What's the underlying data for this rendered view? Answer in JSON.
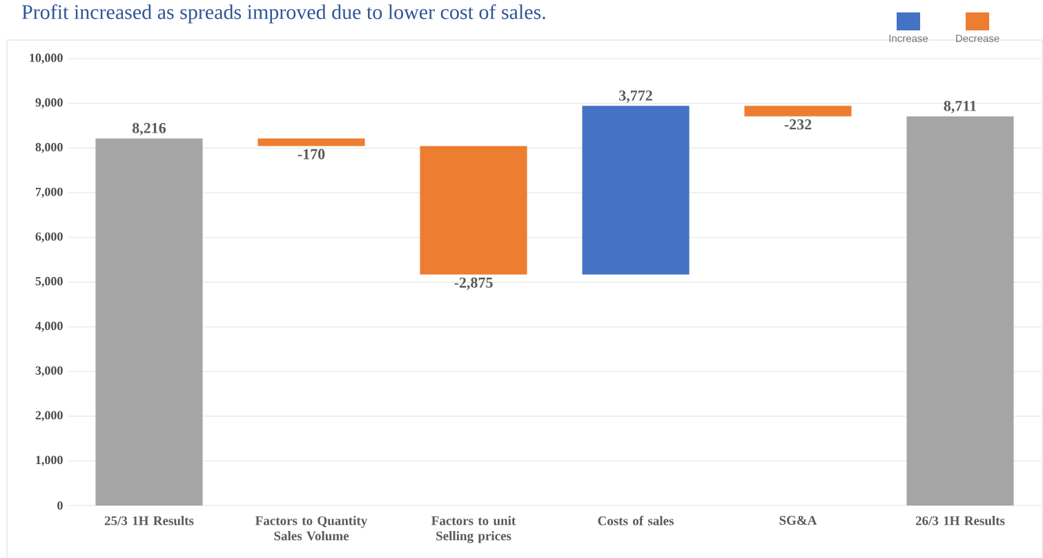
{
  "chart_data": {
    "type": "bar",
    "title": "Profit increased as spreads improved due to lower cost of sales.",
    "categories": [
      "25/3 1H Results",
      "Factors to Quantity Sales Volume",
      "Factors to unit Selling prices",
      "Costs of sales",
      "SG&A",
      "26/3 1H Results"
    ],
    "series": [
      {
        "color": "#a5a5a5",
        "base": [
          0,
          null,
          null,
          null,
          null,
          0
        ],
        "values": [
          8216,
          null,
          null,
          null,
          null,
          8711
        ],
        "value_labels": [
          "8,216",
          null,
          null,
          null,
          null,
          "8,711"
        ]
      },
      {
        "name": "Increase",
        "color": "#4472c4",
        "base": [
          null,
          null,
          null,
          5171,
          null,
          null
        ],
        "values": [
          null,
          null,
          null,
          3772,
          null,
          null
        ],
        "value_labels": [
          null,
          null,
          null,
          "3,772",
          null,
          null
        ]
      },
      {
        "name": "Decrease",
        "color": "#ed7d31",
        "base": [
          null,
          8216,
          8046,
          null,
          8943,
          null
        ],
        "values": [
          null,
          -170,
          -2875,
          null,
          -232,
          null
        ],
        "value_labels": [
          null,
          "-170",
          "-2,875",
          null,
          "-232",
          null
        ]
      }
    ],
    "ylim": [
      0,
      10000
    ],
    "yticks": [
      0,
      {
        "value": 1000,
        "label": "1,000"
      },
      {
        "value": 2000,
        "label": "2,000"
      },
      {
        "value": 3000,
        "label": "3,000"
      },
      {
        "value": 4000,
        "label": "4,000"
      },
      {
        "value": 5000,
        "label": "5,000"
      },
      {
        "value": 6000,
        "label": "6,000"
      },
      {
        "value": 7000,
        "label": "7,000"
      },
      {
        "value": 8000,
        "label": "8,000"
      },
      {
        "value": 9000,
        "label": "9,000"
      },
      {
        "value": 10000,
        "label": "10,000"
      }
    ],
    "grid": "y",
    "legend": "top right"
  }
}
